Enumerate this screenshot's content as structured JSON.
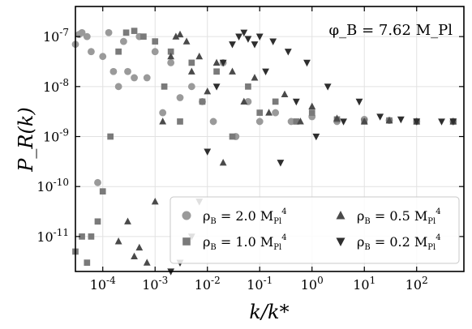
{
  "chart_data": {
    "type": "scatter",
    "title": "",
    "xlabel": "k/k*",
    "ylabel": "P_R(k)",
    "xscale": "log",
    "yscale": "log",
    "xlim": [
      3e-05,
      800
    ],
    "ylim": [
      2e-12,
      4e-07
    ],
    "grid": true,
    "legend_placement": "bottom-right",
    "annotation": "φ_B = 7.62 M_Pl",
    "x_ticks": [
      {
        "value": 0.0001,
        "label": "10^-4"
      },
      {
        "value": 0.001,
        "label": "10^-3"
      },
      {
        "value": 0.01,
        "label": "10^-2"
      },
      {
        "value": 0.1,
        "label": "10^-1"
      },
      {
        "value": 1,
        "label": "10^0"
      },
      {
        "value": 10,
        "label": "10^1"
      },
      {
        "value": 100,
        "label": "10^2"
      }
    ],
    "y_ticks": [
      {
        "value": 1e-11,
        "label": "10^-11"
      },
      {
        "value": 1e-10,
        "label": "10^-10"
      },
      {
        "value": 1e-09,
        "label": "10^-9"
      },
      {
        "value": 1e-08,
        "label": "10^-8"
      },
      {
        "value": 1e-07,
        "label": "10^-7"
      }
    ],
    "series": [
      {
        "name": "ρ_B = 2.0 M_Pl^4",
        "marker": "circle",
        "color": "#9a9a9a",
        "x": [
          3e-05,
          3.5e-05,
          4e-05,
          5e-05,
          6e-05,
          8e-05,
          0.0001,
          0.00013,
          0.00016,
          0.0002,
          0.00025,
          0.0003,
          0.0004,
          0.0005,
          0.0007,
          0.001,
          0.0014,
          0.002,
          0.003,
          0.005,
          0.008,
          0.013,
          0.02,
          0.035,
          0.06,
          0.1,
          0.2,
          0.4,
          1,
          3,
          10,
          30,
          100,
          500
        ],
        "y": [
          7e-08,
          1.1e-07,
          1.2e-07,
          1e-07,
          5e-08,
          1.2e-10,
          4e-08,
          1.2e-07,
          2e-08,
          1e-08,
          8e-08,
          2e-08,
          1.5e-08,
          1e-07,
          1.5e-08,
          5e-08,
          3e-09,
          3e-08,
          6e-09,
          1e-08,
          5e-09,
          2e-09,
          3e-08,
          1e-09,
          5e-09,
          2e-09,
          3e-09,
          2e-09,
          2.5e-09,
          2e-09,
          2.2e-09,
          2.1e-09,
          2e-09,
          2e-09
        ]
      },
      {
        "name": "ρ_B = 1.0 M_Pl^4",
        "marker": "square",
        "color": "#7a7a7a",
        "x": [
          3e-05,
          4e-05,
          5e-05,
          6e-05,
          8e-05,
          0.0001,
          0.00014,
          0.0002,
          0.00028,
          0.0004,
          0.0006,
          0.001,
          0.0015,
          0.002,
          0.003,
          0.005,
          0.008,
          0.015,
          0.03,
          0.06,
          0.1,
          0.2,
          0.5,
          1,
          3,
          10,
          30,
          100,
          500
        ],
        "y": [
          5e-12,
          1e-11,
          3e-12,
          1e-11,
          2e-11,
          8e-11,
          1e-09,
          5e-08,
          1.2e-07,
          1.3e-07,
          1e-07,
          8e-08,
          1e-08,
          5e-08,
          2e-09,
          3e-08,
          5e-09,
          2e-08,
          1e-09,
          1e-08,
          3e-09,
          5e-09,
          2e-09,
          3e-09,
          2.2e-09,
          2e-09,
          2.1e-09,
          2e-09,
          2e-09
        ]
      },
      {
        "name": "ρ_B = 0.5 M_Pl^4",
        "marker": "triangle-up",
        "color": "#4a4a4a",
        "x": [
          0.0002,
          0.0003,
          0.0004,
          0.0005,
          0.0007,
          0.001,
          0.0014,
          0.002,
          0.0025,
          0.003,
          0.004,
          0.005,
          0.007,
          0.01,
          0.015,
          0.02,
          0.03,
          0.05,
          0.08,
          0.15,
          0.3,
          0.6,
          1,
          3,
          10,
          30,
          100,
          500
        ],
        "y": [
          8e-12,
          2e-11,
          4e-12,
          6e-12,
          3e-12,
          5e-11,
          2e-09,
          4e-08,
          1e-07,
          1.1e-07,
          8e-08,
          2e-08,
          4e-08,
          8e-09,
          3e-08,
          3e-10,
          2e-08,
          5e-09,
          1.5e-08,
          3e-09,
          7e-09,
          2e-09,
          4e-09,
          2.3e-09,
          2e-09,
          2.1e-09,
          2e-09,
          2e-09
        ]
      },
      {
        "name": "ρ_B = 0.2 M_Pl^4",
        "marker": "triangle-down",
        "color": "#2e2e2e",
        "x": [
          0.002,
          0.003,
          0.005,
          0.007,
          0.01,
          0.015,
          0.02,
          0.03,
          0.04,
          0.05,
          0.06,
          0.08,
          0.1,
          0.13,
          0.18,
          0.25,
          0.35,
          0.5,
          0.8,
          1.2,
          2,
          4,
          8,
          20,
          50,
          100,
          300,
          500
        ],
        "y": [
          2e-12,
          3e-12,
          1e-11,
          5e-11,
          5e-10,
          1e-08,
          3e-08,
          7e-08,
          1e-07,
          1.2e-07,
          9e-08,
          7e-08,
          1e-07,
          2e-08,
          8e-08,
          3e-10,
          5e-08,
          5e-09,
          3e-08,
          1e-09,
          1e-08,
          2e-09,
          5e-09,
          2.5e-09,
          2.2e-09,
          2e-09,
          2e-09,
          2e-09
        ]
      }
    ]
  }
}
